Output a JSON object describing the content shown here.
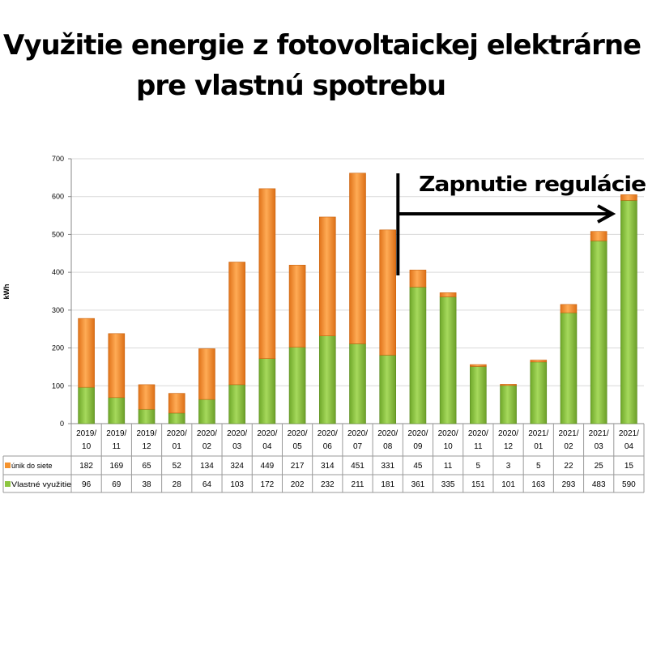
{
  "title_line1": "Využitie energie z fotovoltaickej elektrárne",
  "title_line2": "pre vlastnú spotrebu",
  "annotation": "Zapnutie regulácie",
  "colors": {
    "self_use": "#8cc63f",
    "grid_export": "#f5932e",
    "axis": "#888888",
    "grid": "#d9d9d9"
  },
  "chart_data": {
    "type": "bar",
    "stacked": true,
    "ylabel": "kWh",
    "ylim": [
      0,
      700
    ],
    "yticks": [
      0,
      100,
      200,
      300,
      400,
      500,
      600,
      700
    ],
    "categories": [
      [
        "2019/",
        "10"
      ],
      [
        "2019/",
        "11"
      ],
      [
        "2019/",
        "12"
      ],
      [
        "2020/",
        "01"
      ],
      [
        "2020/",
        "02"
      ],
      [
        "2020/",
        "03"
      ],
      [
        "2020/",
        "04"
      ],
      [
        "2020/",
        "05"
      ],
      [
        "2020/",
        "06"
      ],
      [
        "2020/",
        "07"
      ],
      [
        "2020/",
        "08"
      ],
      [
        "2020/",
        "09"
      ],
      [
        "2020/",
        "10"
      ],
      [
        "2020/",
        "11"
      ],
      [
        "2020/",
        "12"
      ],
      [
        "2021/",
        "01"
      ],
      [
        "2021/",
        "02"
      ],
      [
        "2021/",
        "03"
      ],
      [
        "2021/",
        "04"
      ]
    ],
    "series": [
      {
        "name": "únik do siete",
        "values": [
          182,
          169,
          65,
          52,
          134,
          324,
          449,
          217,
          314,
          451,
          331,
          45,
          11,
          5,
          3,
          5,
          22,
          25,
          15
        ]
      },
      {
        "name": "Vlastné využitie",
        "values": [
          96,
          69,
          38,
          28,
          64,
          103,
          172,
          202,
          232,
          211,
          181,
          361,
          335,
          151,
          101,
          163,
          293,
          483,
          590
        ]
      }
    ],
    "legend": "data-table",
    "grid": true
  }
}
